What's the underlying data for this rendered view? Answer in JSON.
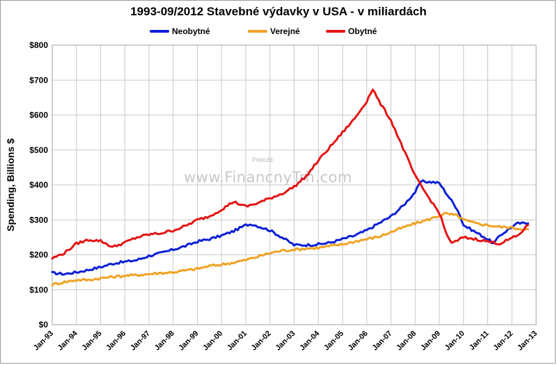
{
  "chart_data": {
    "type": "line",
    "title": "1993-09/2012 Stavebné výdavky v USA - v miliardách",
    "ylabel": "Spending, Billions $",
    "xlabel": "",
    "ylim": [
      0,
      800
    ],
    "yticks": [
      "$0",
      "$100",
      "$200",
      "$300",
      "$400",
      "$500",
      "$600",
      "$700",
      "$800"
    ],
    "xlim": [
      "1993-01",
      "2013-01"
    ],
    "xticks": [
      "Jan-93",
      "Jan-94",
      "Jan-95",
      "Jan-96",
      "Jan-97",
      "Jan-98",
      "Jan-99",
      "Jan-00",
      "Jan-01",
      "Jan-02",
      "Jan-03",
      "Jan-04",
      "Jan-05",
      "Jan-06",
      "Jan-07",
      "Jan-08",
      "Jan-09",
      "Jan-10",
      "Jan-11",
      "Jan-12",
      "Jan-13"
    ],
    "grid": true,
    "legend_position": "top-center",
    "watermark": {
      "small": "Preložil:",
      "big": "www.FinancnyTrh.com"
    },
    "series": [
      {
        "name": "Neobytné",
        "color": "#0b1fd4",
        "points": [
          [
            "1993-01",
            148
          ],
          [
            "1993-07",
            145
          ],
          [
            "1994-01",
            150
          ],
          [
            "1994-07",
            157
          ],
          [
            "1995-01",
            165
          ],
          [
            "1995-07",
            175
          ],
          [
            "1996-01",
            180
          ],
          [
            "1996-07",
            185
          ],
          [
            "1997-01",
            197
          ],
          [
            "1997-07",
            205
          ],
          [
            "1998-01",
            215
          ],
          [
            "1998-07",
            225
          ],
          [
            "1999-01",
            238
          ],
          [
            "1999-07",
            245
          ],
          [
            "2000-01",
            255
          ],
          [
            "2000-07",
            268
          ],
          [
            "2001-01",
            285
          ],
          [
            "2001-04",
            288
          ],
          [
            "2001-07",
            282
          ],
          [
            "2002-01",
            270
          ],
          [
            "2002-07",
            250
          ],
          [
            "2003-01",
            228
          ],
          [
            "2003-07",
            228
          ],
          [
            "2004-01",
            230
          ],
          [
            "2004-07",
            235
          ],
          [
            "2005-01",
            245
          ],
          [
            "2005-07",
            255
          ],
          [
            "2006-01",
            270
          ],
          [
            "2006-07",
            290
          ],
          [
            "2007-01",
            310
          ],
          [
            "2007-07",
            340
          ],
          [
            "2008-01",
            380
          ],
          [
            "2008-04",
            410
          ],
          [
            "2008-10",
            408
          ],
          [
            "2009-01",
            405
          ],
          [
            "2009-04",
            380
          ],
          [
            "2009-10",
            330
          ],
          [
            "2010-01",
            285
          ],
          [
            "2010-07",
            265
          ],
          [
            "2011-01",
            245
          ],
          [
            "2011-04",
            232
          ],
          [
            "2011-07",
            255
          ],
          [
            "2012-01",
            280
          ],
          [
            "2012-04",
            290
          ],
          [
            "2012-09",
            290
          ]
        ]
      },
      {
        "name": "Verejné",
        "color": "#f0a224",
        "points": [
          [
            "1993-01",
            115
          ],
          [
            "1993-07",
            122
          ],
          [
            "1994-01",
            128
          ],
          [
            "1994-07",
            128
          ],
          [
            "1995-01",
            133
          ],
          [
            "1995-07",
            137
          ],
          [
            "1996-01",
            140
          ],
          [
            "1996-07",
            142
          ],
          [
            "1997-01",
            145
          ],
          [
            "1997-07",
            148
          ],
          [
            "1998-01",
            150
          ],
          [
            "1998-07",
            155
          ],
          [
            "1999-01",
            160
          ],
          [
            "1999-07",
            168
          ],
          [
            "2000-01",
            172
          ],
          [
            "2000-07",
            178
          ],
          [
            "2001-01",
            185
          ],
          [
            "2001-07",
            195
          ],
          [
            "2002-01",
            205
          ],
          [
            "2002-07",
            212
          ],
          [
            "2003-01",
            215
          ],
          [
            "2003-07",
            218
          ],
          [
            "2004-01",
            220
          ],
          [
            "2004-07",
            225
          ],
          [
            "2005-01",
            230
          ],
          [
            "2005-07",
            238
          ],
          [
            "2006-01",
            245
          ],
          [
            "2006-07",
            252
          ],
          [
            "2007-01",
            265
          ],
          [
            "2007-07",
            278
          ],
          [
            "2008-01",
            290
          ],
          [
            "2008-07",
            300
          ],
          [
            "2009-01",
            312
          ],
          [
            "2009-04",
            318
          ],
          [
            "2009-10",
            312
          ],
          [
            "2010-01",
            300
          ],
          [
            "2010-07",
            290
          ],
          [
            "2011-01",
            285
          ],
          [
            "2011-07",
            280
          ],
          [
            "2012-01",
            278
          ],
          [
            "2012-04",
            275
          ],
          [
            "2012-09",
            273
          ]
        ]
      },
      {
        "name": "Obytné",
        "color": "#e41414",
        "points": [
          [
            "1993-01",
            190
          ],
          [
            "1993-07",
            205
          ],
          [
            "1994-01",
            232
          ],
          [
            "1994-07",
            243
          ],
          [
            "1995-01",
            240
          ],
          [
            "1995-07",
            222
          ],
          [
            "1996-01",
            235
          ],
          [
            "1996-07",
            250
          ],
          [
            "1997-01",
            258
          ],
          [
            "1997-07",
            262
          ],
          [
            "1998-01",
            270
          ],
          [
            "1998-07",
            282
          ],
          [
            "1999-01",
            300
          ],
          [
            "1999-07",
            310
          ],
          [
            "2000-01",
            330
          ],
          [
            "2000-07",
            352
          ],
          [
            "2001-01",
            338
          ],
          [
            "2001-07",
            348
          ],
          [
            "2002-01",
            362
          ],
          [
            "2002-07",
            375
          ],
          [
            "2003-01",
            395
          ],
          [
            "2003-07",
            425
          ],
          [
            "2004-01",
            470
          ],
          [
            "2004-07",
            510
          ],
          [
            "2005-01",
            550
          ],
          [
            "2005-07",
            590
          ],
          [
            "2006-01",
            640
          ],
          [
            "2006-04",
            675
          ],
          [
            "2006-07",
            640
          ],
          [
            "2007-01",
            585
          ],
          [
            "2007-07",
            505
          ],
          [
            "2008-01",
            425
          ],
          [
            "2008-07",
            370
          ],
          [
            "2009-01",
            320
          ],
          [
            "2009-04",
            268
          ],
          [
            "2009-07",
            232
          ],
          [
            "2010-01",
            250
          ],
          [
            "2010-07",
            245
          ],
          [
            "2011-01",
            238
          ],
          [
            "2011-07",
            232
          ],
          [
            "2012-01",
            248
          ],
          [
            "2012-04",
            255
          ],
          [
            "2012-09",
            285
          ]
        ]
      }
    ]
  }
}
